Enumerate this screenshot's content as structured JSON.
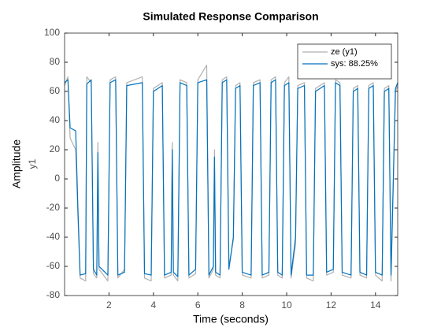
{
  "chart_data": {
    "type": "line",
    "title": "Simulated Response Comparison",
    "x_label": "Time (seconds)",
    "y_label": "Amplitude",
    "y_sublabel": "y1",
    "xlim": [
      0,
      15
    ],
    "xticks": [
      2,
      4,
      6,
      8,
      10,
      12,
      14
    ],
    "ylim": [
      -80,
      100
    ],
    "yticks": [
      -80,
      -60,
      -40,
      -20,
      0,
      20,
      40,
      60,
      80,
      100
    ],
    "grid": false,
    "legend": "upper right",
    "x": [
      0,
      0.15,
      0.25,
      0.5,
      0.6,
      0.7,
      0.95,
      1.0,
      1.2,
      1.3,
      1.45,
      1.5,
      1.55,
      1.95,
      2.05,
      2.3,
      2.4,
      2.7,
      2.8,
      3.5,
      3.6,
      3.9,
      4.0,
      4.4,
      4.5,
      4.8,
      4.85,
      4.9,
      5.1,
      5.2,
      5.5,
      5.6,
      5.9,
      6.0,
      6.4,
      6.5,
      6.7,
      6.75,
      6.8,
      7.0,
      7.1,
      7.3,
      7.4,
      7.6,
      7.7,
      7.9,
      8.0,
      8.4,
      8.5,
      8.8,
      8.9,
      9.2,
      9.3,
      9.5,
      9.6,
      9.8,
      9.9,
      10.1,
      10.2,
      10.4,
      10.5,
      10.8,
      10.9,
      11.2,
      11.3,
      11.7,
      11.8,
      12.1,
      12.2,
      12.4,
      12.5,
      12.9,
      13.0,
      13.2,
      13.3,
      13.6,
      13.7,
      13.9,
      14.0,
      14.3,
      14.4,
      14.6,
      14.7,
      14.9,
      15
    ],
    "series": [
      {
        "name": "ze (y1)",
        "color": "#b0b0b0",
        "values": [
          64,
          70,
          28,
          20,
          -25,
          -68,
          -70,
          70,
          66,
          -65,
          -68,
          25,
          -62,
          -70,
          68,
          70,
          -68,
          -62,
          66,
          70,
          -68,
          -70,
          62,
          66,
          -68,
          -66,
          25,
          -66,
          -70,
          68,
          66,
          -68,
          -65,
          68,
          78,
          -68,
          -62,
          20,
          -66,
          -68,
          68,
          70,
          -60,
          -42,
          64,
          66,
          -66,
          -68,
          66,
          68,
          -68,
          -66,
          68,
          70,
          -66,
          -68,
          66,
          70,
          -68,
          -45,
          64,
          66,
          -68,
          -70,
          62,
          66,
          -66,
          -64,
          68,
          66,
          -66,
          -68,
          62,
          64,
          -66,
          -68,
          64,
          66,
          -66,
          -70,
          62,
          64,
          -70,
          60,
          64
        ]
      },
      {
        "name": "sys: 88.25%",
        "color": "#0072bd",
        "values": [
          66,
          68,
          35,
          33,
          -20,
          -66,
          -65,
          65,
          68,
          -62,
          -66,
          18,
          -60,
          -66,
          66,
          68,
          -66,
          -64,
          64,
          66,
          -65,
          -66,
          60,
          64,
          -66,
          -64,
          20,
          -64,
          -67,
          66,
          64,
          -66,
          -62,
          66,
          68,
          -66,
          -60,
          15,
          -64,
          -66,
          66,
          68,
          -62,
          -40,
          62,
          64,
          -64,
          -66,
          64,
          66,
          -66,
          -64,
          66,
          68,
          -64,
          -66,
          64,
          66,
          -66,
          -40,
          62,
          64,
          -66,
          -66,
          60,
          64,
          -64,
          -62,
          66,
          64,
          -64,
          -66,
          60,
          62,
          -64,
          -66,
          62,
          64,
          -64,
          -66,
          60,
          62,
          -66,
          62,
          66
        ]
      }
    ]
  }
}
